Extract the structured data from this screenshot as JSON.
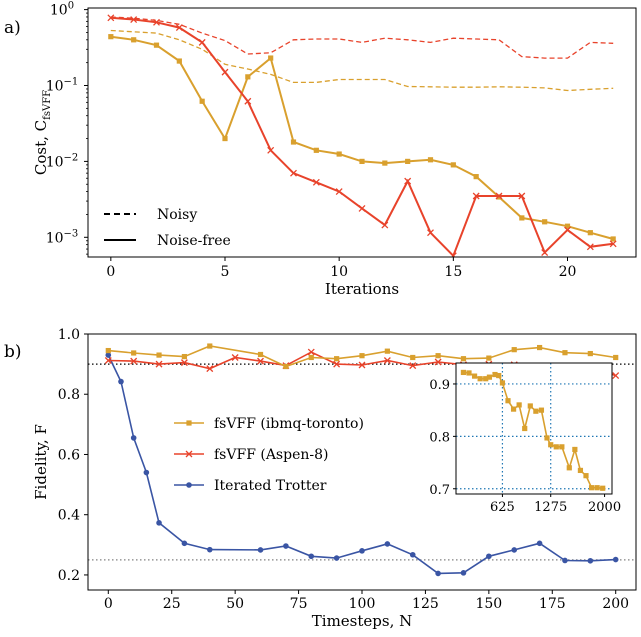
{
  "colors": {
    "orange": "#D9A02E",
    "red": "#E8432B",
    "blue": "#3A55A4",
    "grid": "#1F77B4"
  },
  "chart_data": [
    {
      "panel_label": "a)",
      "type": "line",
      "ylog": true,
      "xlabel": "Iterations",
      "ylabel": "Cost, C",
      "ylabel_sub": "fsVFF",
      "xlim": [
        -1,
        23
      ],
      "ylim": [
        0.00055,
        1.05
      ],
      "xticks": [
        0,
        5,
        10,
        15,
        20
      ],
      "yticks": [
        0.001,
        0.01,
        0.1,
        1
      ],
      "ytick_labels": [
        "10",
        "10",
        "10",
        "10"
      ],
      "ytick_exps": [
        "−3",
        "−2",
        "−1",
        "0"
      ],
      "legend": {
        "position": "bottom-left",
        "entries": [
          {
            "label": "Noisy",
            "style": "dashed"
          },
          {
            "label": "Noise-free",
            "style": "solid"
          }
        ]
      },
      "series": [
        {
          "color": "orange",
          "style": "solid",
          "marker": "square",
          "x": [
            0,
            1,
            2,
            3,
            4,
            5,
            6,
            7,
            8,
            9,
            10,
            11,
            12,
            13,
            14,
            15,
            16,
            17,
            18,
            19,
            20,
            21,
            22
          ],
          "y": [
            0.44,
            0.4,
            0.34,
            0.21,
            0.062,
            0.02,
            0.13,
            0.23,
            0.018,
            0.014,
            0.0125,
            0.01,
            0.0095,
            0.01,
            0.0105,
            0.009,
            0.0063,
            0.0034,
            0.0018,
            0.0016,
            0.0014,
            0.00115,
            0.00095
          ]
        },
        {
          "color": "red",
          "style": "solid",
          "marker": "x",
          "x": [
            0,
            1,
            2,
            3,
            4,
            5,
            6,
            7,
            8,
            9,
            10,
            11,
            12,
            13,
            14,
            15,
            16,
            17,
            18,
            19,
            20,
            21,
            22
          ],
          "y": [
            0.78,
            0.74,
            0.68,
            0.58,
            0.37,
            0.15,
            0.062,
            0.014,
            0.007,
            0.0053,
            0.004,
            0.0024,
            0.00145,
            0.0055,
            0.00115,
            0.00057,
            0.0035,
            0.0035,
            0.0035,
            0.00063,
            0.00125,
            0.00075,
            0.00082
          ]
        },
        {
          "color": "orange",
          "style": "dashed",
          "marker": "none",
          "x": [
            0,
            1,
            2,
            3,
            4,
            5,
            6,
            7,
            8,
            9,
            10,
            11,
            12,
            13,
            14,
            15,
            16,
            17,
            18,
            19,
            20,
            21,
            22
          ],
          "y": [
            0.53,
            0.51,
            0.49,
            0.4,
            0.3,
            0.19,
            0.165,
            0.14,
            0.11,
            0.11,
            0.12,
            0.12,
            0.12,
            0.097,
            0.096,
            0.095,
            0.095,
            0.096,
            0.095,
            0.093,
            0.086,
            0.089,
            0.092
          ]
        },
        {
          "color": "red",
          "style": "dashed",
          "marker": "none",
          "x": [
            0,
            1,
            2,
            3,
            4,
            5,
            6,
            7,
            8,
            9,
            10,
            11,
            12,
            13,
            14,
            15,
            16,
            17,
            18,
            19,
            20,
            21,
            22
          ],
          "y": [
            0.8,
            0.77,
            0.72,
            0.64,
            0.49,
            0.39,
            0.26,
            0.27,
            0.4,
            0.41,
            0.41,
            0.37,
            0.42,
            0.4,
            0.37,
            0.42,
            0.41,
            0.4,
            0.24,
            0.23,
            0.23,
            0.37,
            0.36
          ]
        }
      ]
    },
    {
      "panel_label": "b)",
      "type": "line",
      "xlabel": "Timesteps, N",
      "ylabel": "Fidelity, F",
      "xlim": [
        -8,
        208
      ],
      "ylim": [
        0.15,
        1.0
      ],
      "xticks": [
        0,
        25,
        50,
        75,
        100,
        125,
        150,
        175,
        200
      ],
      "yticks": [
        0.2,
        0.4,
        0.6,
        0.8,
        1.0
      ],
      "ytick_labels": [
        "0.2",
        "0.4",
        "0.6",
        "0.8",
        "1.0"
      ],
      "hlines": [
        {
          "y": 0.9,
          "color": "#000000",
          "style": "dotted"
        },
        {
          "y": 0.25,
          "color": "#808080",
          "style": "dotted"
        }
      ],
      "legend": {
        "position": "center-left",
        "entries": [
          {
            "label": "fsVFF (ibmq-toronto)",
            "color": "orange",
            "marker": "square"
          },
          {
            "label": "fsVFF (Aspen-8)",
            "color": "red",
            "marker": "x"
          },
          {
            "label": "Iterated Trotter",
            "color": "blue",
            "marker": "circle"
          }
        ]
      },
      "series": [
        {
          "name": "fsVFF (ibmq-toronto)",
          "color": "orange",
          "marker": "square",
          "x": [
            0,
            10,
            20,
            30,
            40,
            60,
            70,
            80,
            90,
            100,
            110,
            120,
            130,
            140,
            150,
            160,
            170,
            180,
            190,
            200
          ],
          "y": [
            0.945,
            0.937,
            0.93,
            0.925,
            0.96,
            0.932,
            0.892,
            0.922,
            0.918,
            0.928,
            0.943,
            0.922,
            0.928,
            0.918,
            0.92,
            0.948,
            0.955,
            0.938,
            0.935,
            0.922
          ]
        },
        {
          "name": "fsVFF (Aspen-8)",
          "color": "red",
          "marker": "x",
          "x": [
            0,
            10,
            20,
            30,
            40,
            50,
            60,
            70,
            80,
            90,
            100,
            110,
            120,
            130,
            140,
            150,
            160,
            170,
            180,
            190,
            200
          ],
          "y": [
            0.912,
            0.91,
            0.9,
            0.905,
            0.885,
            0.922,
            0.91,
            0.895,
            0.94,
            0.9,
            0.897,
            0.912,
            0.895,
            0.907,
            0.898,
            0.9,
            0.898,
            0.887,
            0.89,
            0.891,
            0.862
          ]
        },
        {
          "name": "Iterated Trotter",
          "color": "blue",
          "marker": "circle",
          "x": [
            0,
            5,
            10,
            15,
            20,
            30,
            40,
            60,
            70,
            80,
            90,
            100,
            110,
            120,
            130,
            140,
            150,
            160,
            170,
            180,
            190,
            200
          ],
          "y": [
            0.93,
            0.842,
            0.655,
            0.54,
            0.373,
            0.305,
            0.284,
            0.283,
            0.296,
            0.262,
            0.256,
            0.28,
            0.303,
            0.267,
            0.205,
            0.207,
            0.262,
            0.283,
            0.305,
            0.248,
            0.247,
            0.251
          ]
        }
      ],
      "inset": {
        "type": "line",
        "xlim": [
          0,
          2100
        ],
        "ylim": [
          0.69,
          0.94
        ],
        "xticks": [
          625,
          1275,
          2000
        ],
        "yticks": [
          0.7,
          0.8,
          0.9
        ],
        "ytick_labels": [
          "0.7",
          "0.8",
          "0.9"
        ],
        "grid_x": [
          625,
          1275
        ],
        "grid_y": [
          0.7,
          0.8,
          0.9
        ],
        "series": [
          {
            "color": "orange",
            "marker": "square",
            "x": [
              100,
              175,
              250,
              325,
              400,
              450,
              525,
              575,
              625,
              700,
              775,
              850,
              925,
              1000,
              1075,
              1150,
              1225,
              1275,
              1350,
              1425,
              1525,
              1600,
              1675,
              1750,
              1825,
              1900,
              1975
            ],
            "y": [
              0.922,
              0.921,
              0.915,
              0.91,
              0.91,
              0.913,
              0.918,
              0.916,
              0.902,
              0.868,
              0.852,
              0.86,
              0.815,
              0.858,
              0.848,
              0.85,
              0.797,
              0.784,
              0.78,
              0.78,
              0.74,
              0.775,
              0.735,
              0.725,
              0.702,
              0.702,
              0.701
            ]
          }
        ]
      }
    }
  ]
}
